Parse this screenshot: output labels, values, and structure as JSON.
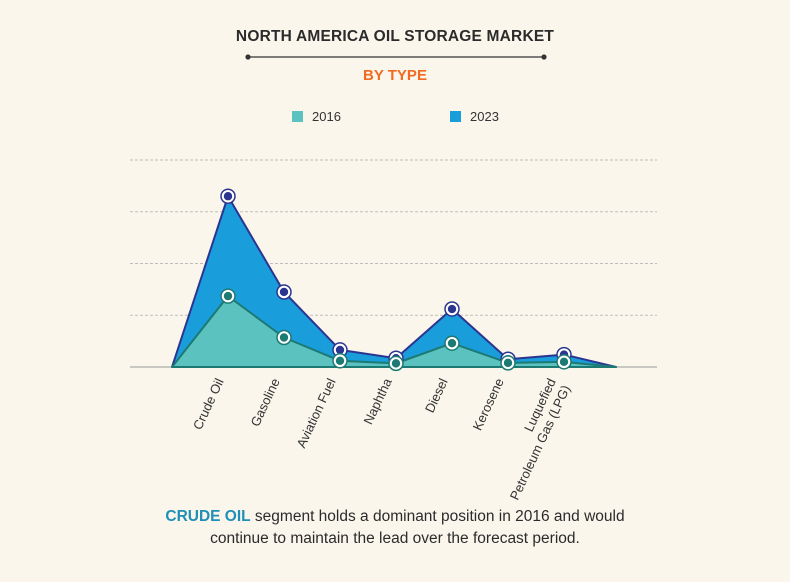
{
  "header": {
    "title": "NORTH AMERICA OIL STORAGE MARKET",
    "subtitle": "BY TYPE"
  },
  "legend": [
    {
      "label": "2016",
      "color": "#5bc2c0"
    },
    {
      "label": "2023",
      "color": "#1a9ddb"
    }
  ],
  "chart_data": {
    "type": "area",
    "categories": [
      "Crude Oil",
      "Gasoline",
      "Aviation Fuel",
      "Naphtha",
      "Diesel",
      "Kerosene",
      "Luquefied Petroleum Gas (LPG)"
    ],
    "series": [
      {
        "name": "2016",
        "values": [
          1.37,
          0.57,
          0.12,
          0.07,
          0.46,
          0.08,
          0.1
        ],
        "fill": "#5bc2c0",
        "stroke": "#1d7a73"
      },
      {
        "name": "2023",
        "values": [
          3.3,
          1.45,
          0.33,
          0.17,
          1.12,
          0.15,
          0.24
        ],
        "fill": "#1a9ddb",
        "stroke": "#2b3590"
      }
    ],
    "ylim": [
      0,
      4
    ],
    "grid": true,
    "legend_position": "top",
    "xlabel": "",
    "ylabel": ""
  },
  "caption": {
    "highlight": "CRUDE OIL",
    "line1_rest": " segment holds a dominant position in 2016 and would",
    "line2": "continue to maintain the lead over the forecast period."
  }
}
